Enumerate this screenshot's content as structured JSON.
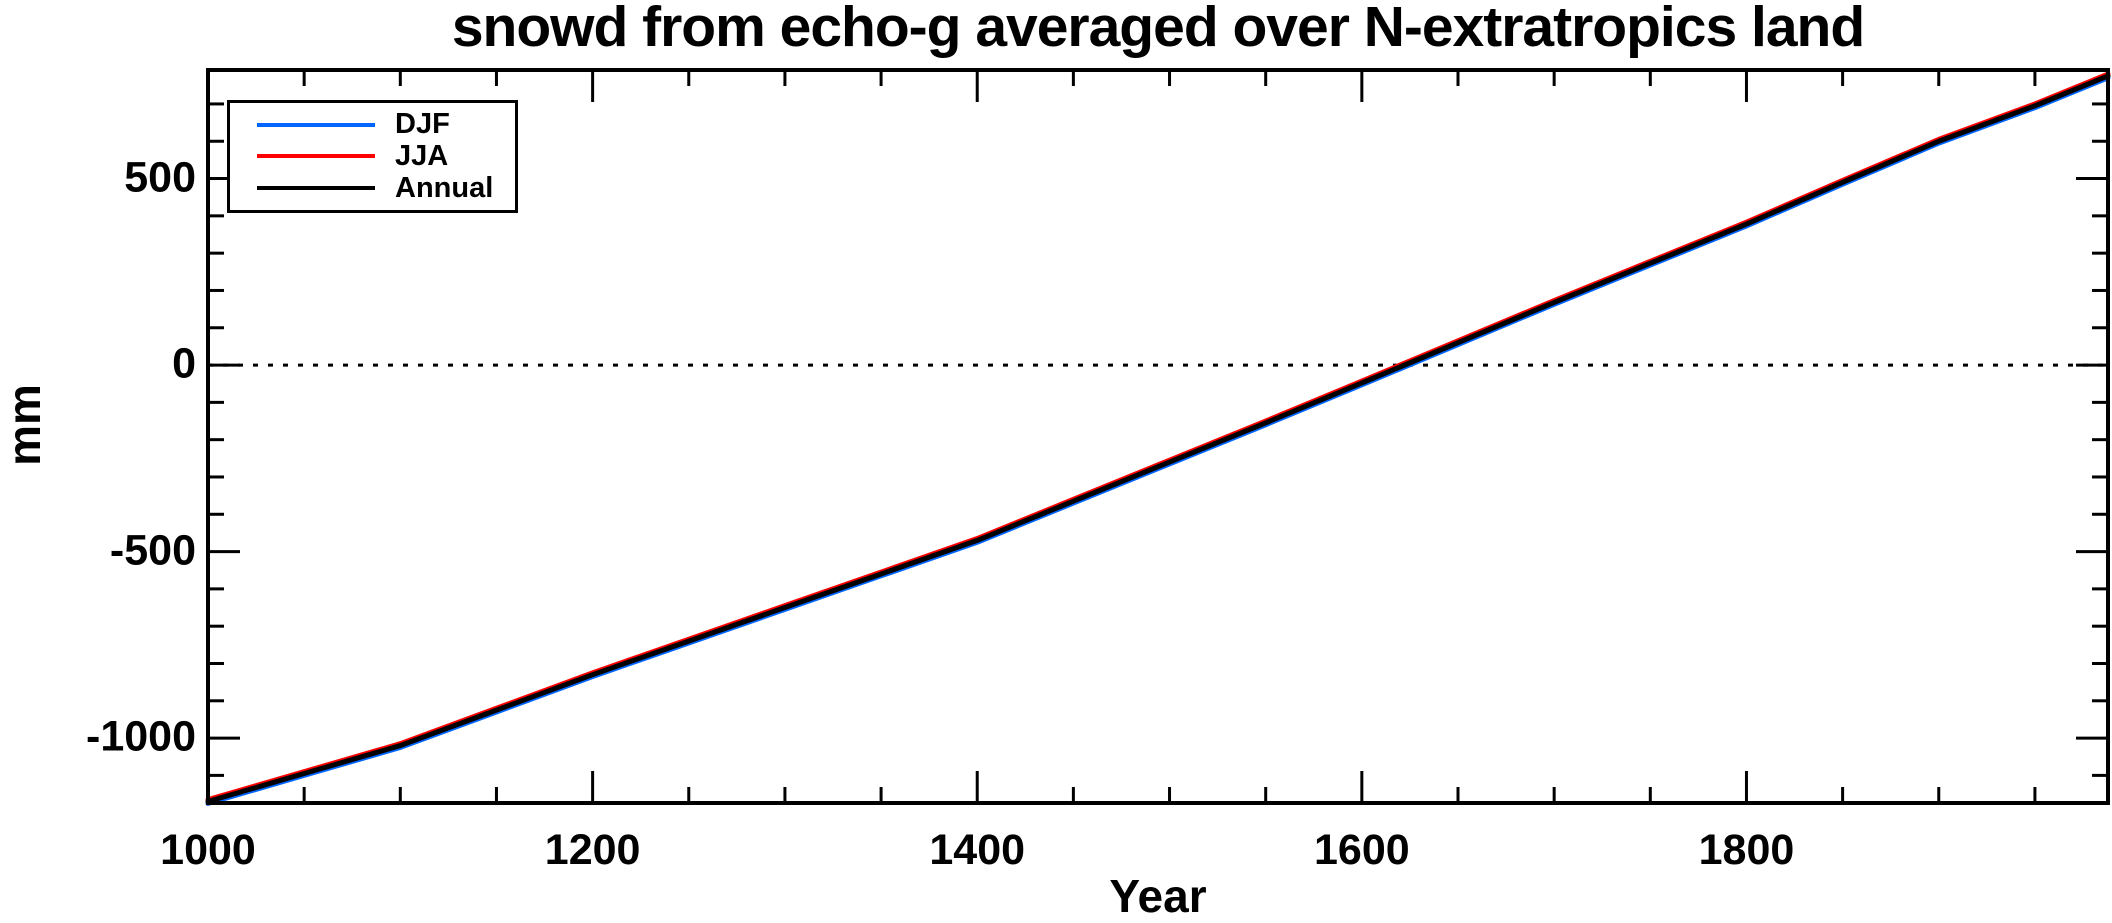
{
  "page": {
    "background": "#ffffff"
  },
  "chart": {
    "title": "snowd from echo-g averaged over N-extratropics land",
    "xlabel": "Year",
    "ylabel": "mm",
    "legend": {
      "items": [
        {
          "label": "DJF",
          "color": "#0066ff"
        },
        {
          "label": "JJA",
          "color": "#ff0000"
        },
        {
          "label": "Annual",
          "color": "#000000"
        }
      ]
    },
    "chart_data": {
      "type": "line",
      "title": "snowd from echo-g averaged over N-extratropics land",
      "xlabel": "Year",
      "ylabel": "mm",
      "x": [
        1000,
        1050,
        1100,
        1150,
        1200,
        1250,
        1300,
        1350,
        1400,
        1450,
        1500,
        1550,
        1600,
        1650,
        1700,
        1750,
        1800,
        1850,
        1900,
        1950,
        1988
      ],
      "series": [
        {
          "name": "DJF",
          "color": "#0066ff",
          "values": [
            -1175,
            -1100,
            -1025,
            -930,
            -835,
            -745,
            -655,
            -565,
            -475,
            -370,
            -265,
            -160,
            -53,
            55,
            163,
            268,
            373,
            485,
            595,
            690,
            770
          ]
        },
        {
          "name": "JJA",
          "color": "#ff0000",
          "values": [
            -1165,
            -1090,
            -1015,
            -920,
            -825,
            -735,
            -645,
            -555,
            -465,
            -360,
            -255,
            -150,
            -43,
            65,
            173,
            278,
            383,
            495,
            605,
            700,
            780
          ]
        },
        {
          "name": "Annual",
          "color": "#000000",
          "values": [
            -1170,
            -1095,
            -1020,
            -925,
            -830,
            -740,
            -650,
            -560,
            -470,
            -365,
            -260,
            -155,
            -48,
            60,
            168,
            273,
            378,
            490,
            600,
            695,
            775
          ]
        }
      ],
      "xlim": [
        1000,
        1988
      ],
      "ylim": [
        -1174,
        791
      ],
      "xticks_major": [
        {
          "value": 1000,
          "label": "1000"
        },
        {
          "value": 1200,
          "label": "1200"
        },
        {
          "value": 1400,
          "label": "1400"
        },
        {
          "value": 1600,
          "label": "1600"
        },
        {
          "value": 1800,
          "label": "1800"
        }
      ],
      "xticks_minor": [
        1050,
        1100,
        1150,
        1250,
        1300,
        1350,
        1450,
        1500,
        1550,
        1650,
        1700,
        1750,
        1850,
        1900,
        1950
      ],
      "yticks_major": [
        {
          "value": 500,
          "label": "500"
        },
        {
          "value": 0,
          "label": "0"
        },
        {
          "value": -500,
          "label": "-500"
        },
        {
          "value": -1000,
          "label": "-1000"
        }
      ],
      "yticks_minor": [
        700,
        600,
        400,
        300,
        200,
        100,
        -100,
        -200,
        -300,
        -400,
        -600,
        -700,
        -800,
        -900,
        -1100
      ],
      "zero_line": true,
      "grid": false,
      "legend_position": "top-left",
      "axis_color": "#000000",
      "zero_crossing_year": 1616
    }
  }
}
